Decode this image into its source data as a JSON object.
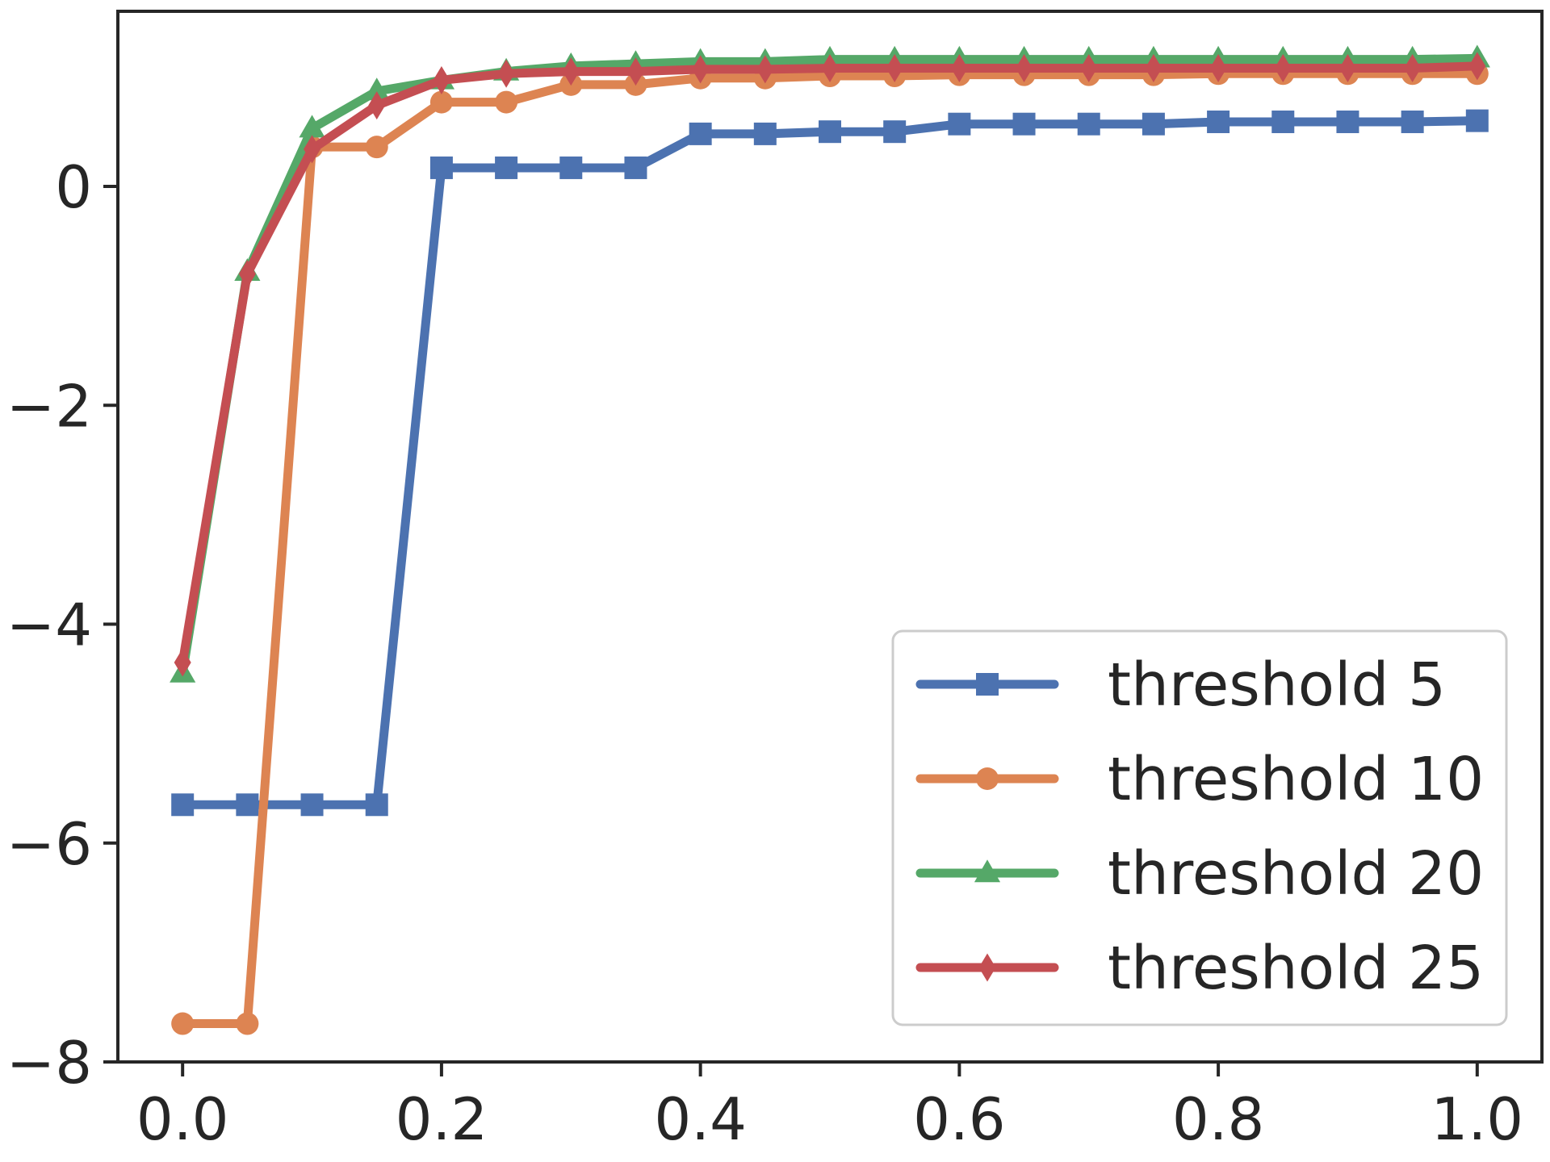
{
  "chart_data": {
    "type": "line",
    "title": "",
    "xlabel": "",
    "ylabel": "",
    "xlim": [
      -0.05,
      1.05
    ],
    "ylim": [
      -8.0,
      1.6
    ],
    "xticks": [
      0.0,
      0.2,
      0.4,
      0.6,
      0.8,
      1.0
    ],
    "xtick_labels": [
      "0.0",
      "0.2",
      "0.4",
      "0.6",
      "0.8",
      "1.0"
    ],
    "yticks": [
      0,
      -2,
      -4,
      -6,
      -8
    ],
    "ytick_labels": [
      "0",
      "−2",
      "−4",
      "−6",
      "−8"
    ],
    "grid": false,
    "legend_position": "lower-right",
    "x": [
      0.0,
      0.05,
      0.1,
      0.15,
      0.2,
      0.25,
      0.3,
      0.35,
      0.4,
      0.45,
      0.5,
      0.55,
      0.6,
      0.65,
      0.7,
      0.75,
      0.8,
      0.85,
      0.9,
      0.95,
      1.0
    ],
    "series": [
      {
        "name": "threshold 5",
        "color": "#4c72b0",
        "marker": "square",
        "values": [
          -5.65,
          -5.65,
          -5.65,
          -5.65,
          0.17,
          0.17,
          0.17,
          0.17,
          0.48,
          0.48,
          0.5,
          0.5,
          0.57,
          0.57,
          0.57,
          0.57,
          0.59,
          0.59,
          0.59,
          0.59,
          0.6
        ]
      },
      {
        "name": "threshold 10",
        "color": "#dd8452",
        "marker": "circle",
        "values": [
          -7.65,
          -7.65,
          0.36,
          0.36,
          0.77,
          0.77,
          0.93,
          0.93,
          0.99,
          0.99,
          1.01,
          1.01,
          1.02,
          1.02,
          1.02,
          1.02,
          1.03,
          1.03,
          1.03,
          1.03,
          1.03
        ]
      },
      {
        "name": "threshold 20",
        "color": "#55a868",
        "marker": "triangle-up",
        "values": [
          -4.45,
          -0.78,
          0.53,
          0.87,
          0.97,
          1.05,
          1.1,
          1.12,
          1.14,
          1.14,
          1.16,
          1.16,
          1.16,
          1.16,
          1.16,
          1.16,
          1.16,
          1.16,
          1.16,
          1.16,
          1.17
        ]
      },
      {
        "name": "threshold 25",
        "color": "#c44e52",
        "marker": "thin-diamond",
        "values": [
          -4.35,
          -0.8,
          0.34,
          0.74,
          0.97,
          1.03,
          1.05,
          1.05,
          1.07,
          1.07,
          1.08,
          1.08,
          1.08,
          1.08,
          1.08,
          1.08,
          1.08,
          1.08,
          1.08,
          1.08,
          1.1
        ]
      }
    ]
  }
}
